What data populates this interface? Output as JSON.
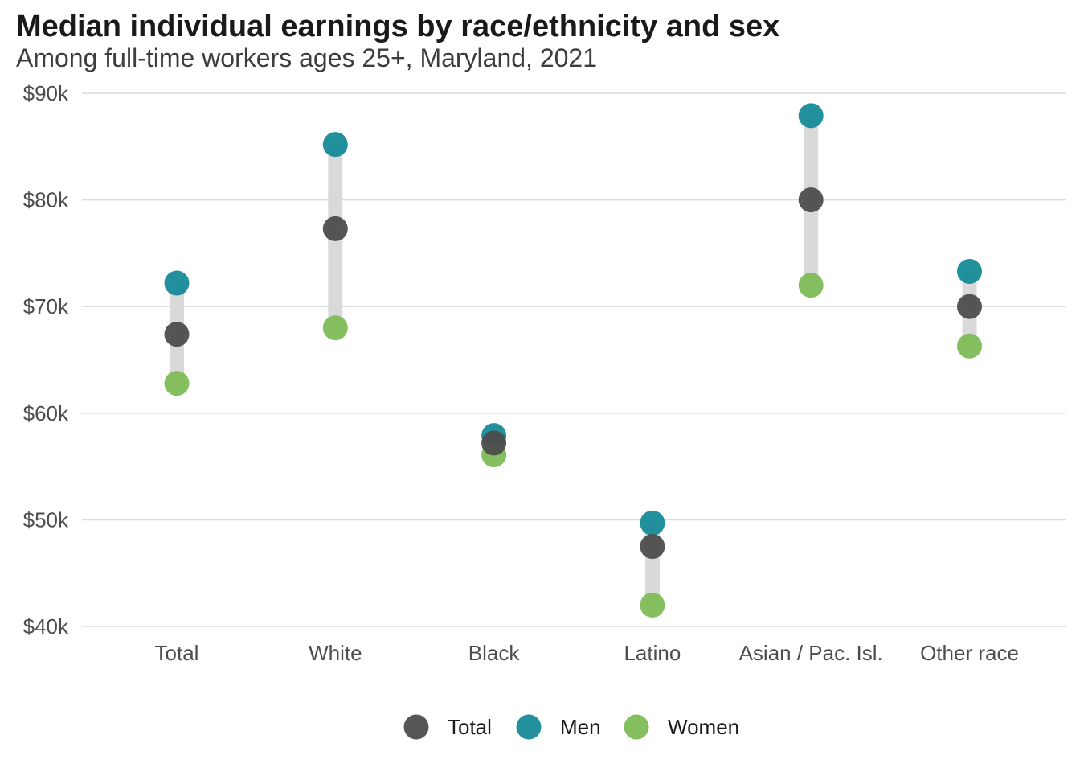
{
  "chart_data": {
    "type": "scatter",
    "title": "Median individual earnings by race/ethnicity and sex",
    "subtitle": "Among full-time workers ages 25+, Maryland, 2021",
    "xlabel": "",
    "ylabel": "",
    "categories": [
      "Total",
      "White",
      "Black",
      "Latino",
      "Asian / Pac. Isl.",
      "Other race"
    ],
    "series": [
      {
        "name": "Total",
        "color": "#4d4d4d",
        "values": [
          67400,
          77300,
          57200,
          47500,
          80000,
          70000
        ]
      },
      {
        "name": "Men",
        "color": "#168b98",
        "values": [
          72200,
          85200,
          57900,
          49700,
          87900,
          73300
        ]
      },
      {
        "name": "Women",
        "color": "#80bc57",
        "values": [
          62800,
          68000,
          56100,
          42000,
          72000,
          66300
        ]
      }
    ],
    "ylim": [
      40000,
      90000
    ],
    "yticks": [
      40000,
      50000,
      60000,
      70000,
      80000,
      90000
    ],
    "ytick_labels": [
      "$40k",
      "$50k",
      "$60k",
      "$70k",
      "$80k",
      "$90k"
    ],
    "grid": "horizontal",
    "range_bar_color": "#d9d9d9",
    "legend_position": "bottom"
  }
}
